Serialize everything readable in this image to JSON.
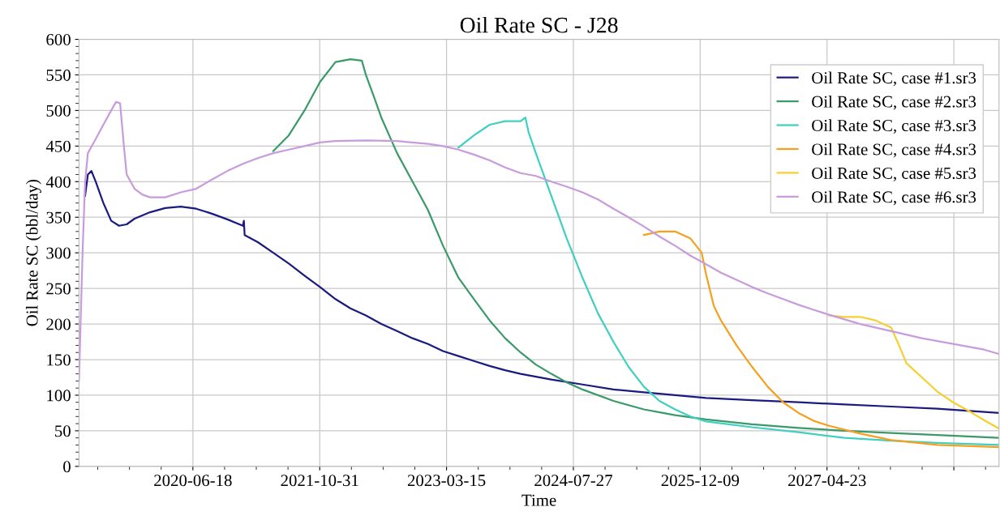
{
  "chart_data": {
    "type": "line",
    "title": "Oil Rate SC - J28",
    "xlabel": "Time",
    "ylabel": "Oil Rate SC (bbl/day)",
    "xlim": [
      "2019-03-27",
      "2029-03-01"
    ],
    "ylim": [
      0,
      600
    ],
    "xticks": [
      "2020-06-18",
      "2021-10-31",
      "2023-03-15",
      "2024-07-27",
      "2025-12-09",
      "2027-04-23",
      {
        "value": "2028-09-04",
        "label": null
      }
    ],
    "yticks": [
      0,
      50,
      100,
      150,
      200,
      250,
      300,
      350,
      400,
      450,
      500,
      550,
      600
    ],
    "grid": true,
    "legend": "top right",
    "marker": "none",
    "line_style": "solid",
    "series": [
      {
        "name": "Oil Rate SC, case #1.sr3",
        "color": "#1a1a80",
        "x": [
          "2019-04-20",
          "2019-05-01",
          "2019-05-15",
          "2019-06-01",
          "2019-07-01",
          "2019-08-01",
          "2019-09-01",
          "2019-10-01",
          "2019-11-01",
          "2020-01-01",
          "2020-03-01",
          "2020-05-01",
          "2020-07-01",
          "2020-09-01",
          "2020-11-01",
          "2021-01-01",
          "2021-01-05",
          "2021-01-08",
          "2021-03-01",
          "2021-05-01",
          "2021-07-01",
          "2021-09-01",
          "2021-11-01",
          "2022-01-01",
          "2022-03-01",
          "2022-05-01",
          "2022-07-01",
          "2022-09-01",
          "2022-11-01",
          "2023-01-01",
          "2023-03-01",
          "2023-05-01",
          "2023-07-01",
          "2023-09-01",
          "2023-11-01",
          "2024-01-01",
          "2024-05-01",
          "2024-09-01",
          "2025-01-01",
          "2025-05-01",
          "2025-09-01",
          "2026-01-01",
          "2026-07-01",
          "2027-01-01",
          "2027-07-01",
          "2028-01-01",
          "2028-07-01",
          "2029-03-01"
        ],
        "values": [
          380,
          410,
          415,
          400,
          370,
          345,
          338,
          340,
          348,
          357,
          363,
          365,
          362,
          355,
          347,
          338,
          345,
          325,
          315,
          300,
          285,
          268,
          252,
          235,
          222,
          212,
          200,
          190,
          180,
          172,
          162,
          155,
          148,
          141,
          135,
          130,
          122,
          115,
          108,
          104,
          100,
          96,
          93,
          90,
          87,
          84,
          81,
          75
        ]
      },
      {
        "name": "Oil Rate SC, case #2.sr3",
        "color": "#3a9a6a",
        "x": [
          "2021-05-01",
          "2021-07-01",
          "2021-09-01",
          "2021-11-01",
          "2022-01-01",
          "2022-03-01",
          "2022-04-15",
          "2022-05-01",
          "2022-06-01",
          "2022-07-01",
          "2022-08-01",
          "2022-09-01",
          "2022-11-01",
          "2023-01-01",
          "2023-03-01",
          "2023-05-01",
          "2023-07-01",
          "2023-09-01",
          "2023-11-01",
          "2024-01-01",
          "2024-03-01",
          "2024-05-01",
          "2024-07-01",
          "2024-09-01",
          "2025-01-01",
          "2025-05-01",
          "2025-09-01",
          "2026-01-01",
          "2026-07-01",
          "2027-01-01",
          "2027-07-01",
          "2028-01-01",
          "2028-07-01",
          "2029-03-01"
        ],
        "values": [
          443,
          465,
          500,
          540,
          568,
          572,
          570,
          550,
          520,
          490,
          465,
          440,
          400,
          360,
          310,
          265,
          235,
          205,
          180,
          160,
          143,
          130,
          118,
          108,
          92,
          80,
          72,
          66,
          59,
          54,
          50,
          47,
          44,
          40
        ]
      },
      {
        "name": "Oil Rate SC, case #3.sr3",
        "color": "#40cfc0",
        "x": [
          "2023-05-01",
          "2023-07-01",
          "2023-09-01",
          "2023-11-01",
          "2024-01-01",
          "2024-01-20",
          "2024-02-01",
          "2024-03-01",
          "2024-05-01",
          "2024-07-01",
          "2024-09-01",
          "2024-11-01",
          "2025-01-01",
          "2025-03-01",
          "2025-05-01",
          "2025-07-01",
          "2025-09-01",
          "2025-11-01",
          "2026-01-01",
          "2026-07-01",
          "2027-01-01",
          "2027-07-01",
          "2028-01-01",
          "2028-07-01",
          "2029-03-01"
        ],
        "values": [
          448,
          465,
          480,
          485,
          485,
          490,
          470,
          440,
          380,
          320,
          265,
          215,
          175,
          140,
          112,
          92,
          80,
          70,
          63,
          55,
          48,
          40,
          36,
          33,
          30
        ]
      },
      {
        "name": "Oil Rate SC, case #4.sr3",
        "color": "#f5a020",
        "x": [
          "2025-05-01",
          "2025-07-01",
          "2025-09-01",
          "2025-11-01",
          "2025-12-15",
          "2026-01-01",
          "2026-02-01",
          "2026-03-01",
          "2026-05-01",
          "2026-07-01",
          "2026-09-01",
          "2026-11-01",
          "2027-01-01",
          "2027-03-01",
          "2027-05-01",
          "2027-09-01",
          "2028-01-01",
          "2028-07-01",
          "2029-03-01"
        ],
        "values": [
          325,
          330,
          330,
          320,
          300,
          270,
          225,
          205,
          170,
          140,
          112,
          90,
          75,
          64,
          57,
          46,
          37,
          30,
          27
        ]
      },
      {
        "name": "Oil Rate SC, case #5.sr3",
        "color": "#f5d030",
        "x": [
          "2027-05-01",
          "2027-07-01",
          "2027-09-01",
          "2027-11-01",
          "2028-01-01",
          "2028-02-01",
          "2028-03-01",
          "2028-05-01",
          "2028-07-01",
          "2028-09-01",
          "2028-11-01",
          "2029-01-01",
          "2029-03-01"
        ],
        "values": [
          212,
          210,
          210,
          205,
          195,
          170,
          145,
          125,
          105,
          90,
          78,
          65,
          53
        ]
      },
      {
        "name": "Oil Rate SC, case #6.sr3",
        "color": "#c89cdc",
        "x": [
          "2019-03-27",
          "2019-04-10",
          "2019-04-20",
          "2019-05-01",
          "2019-06-01",
          "2019-07-01",
          "2019-08-01",
          "2019-08-20",
          "2019-09-05",
          "2019-09-20",
          "2019-10-01",
          "2019-11-01",
          "2019-12-01",
          "2020-01-01",
          "2020-03-01",
          "2020-05-01",
          "2020-07-01",
          "2020-09-01",
          "2020-11-01",
          "2021-01-01",
          "2021-03-01",
          "2021-05-01",
          "2021-07-01",
          "2021-09-01",
          "2021-11-01",
          "2022-01-01",
          "2022-05-01",
          "2022-09-01",
          "2023-01-01",
          "2023-03-01",
          "2023-05-01",
          "2023-07-01",
          "2023-09-01",
          "2023-11-01",
          "2024-01-01",
          "2024-03-01",
          "2024-05-01",
          "2024-07-01",
          "2024-09-01",
          "2024-11-01",
          "2025-01-01",
          "2025-03-01",
          "2025-05-01",
          "2025-07-01",
          "2025-09-01",
          "2025-11-01",
          "2026-01-01",
          "2026-03-01",
          "2026-05-01",
          "2026-07-01",
          "2026-09-01",
          "2026-11-01",
          "2027-01-01",
          "2027-03-01",
          "2027-05-01",
          "2027-09-01",
          "2028-01-01",
          "2028-05-01",
          "2028-09-01",
          "2029-01-01",
          "2029-03-01"
        ],
        "values": [
          120,
          300,
          400,
          440,
          460,
          480,
          500,
          512,
          510,
          450,
          410,
          390,
          382,
          378,
          378,
          385,
          390,
          403,
          415,
          425,
          433,
          440,
          445,
          450,
          455,
          457,
          458,
          457,
          453,
          450,
          445,
          438,
          430,
          420,
          412,
          408,
          400,
          393,
          385,
          375,
          362,
          350,
          337,
          323,
          310,
          296,
          284,
          272,
          262,
          252,
          243,
          235,
          227,
          220,
          213,
          200,
          190,
          180,
          172,
          164,
          158
        ]
      }
    ]
  }
}
